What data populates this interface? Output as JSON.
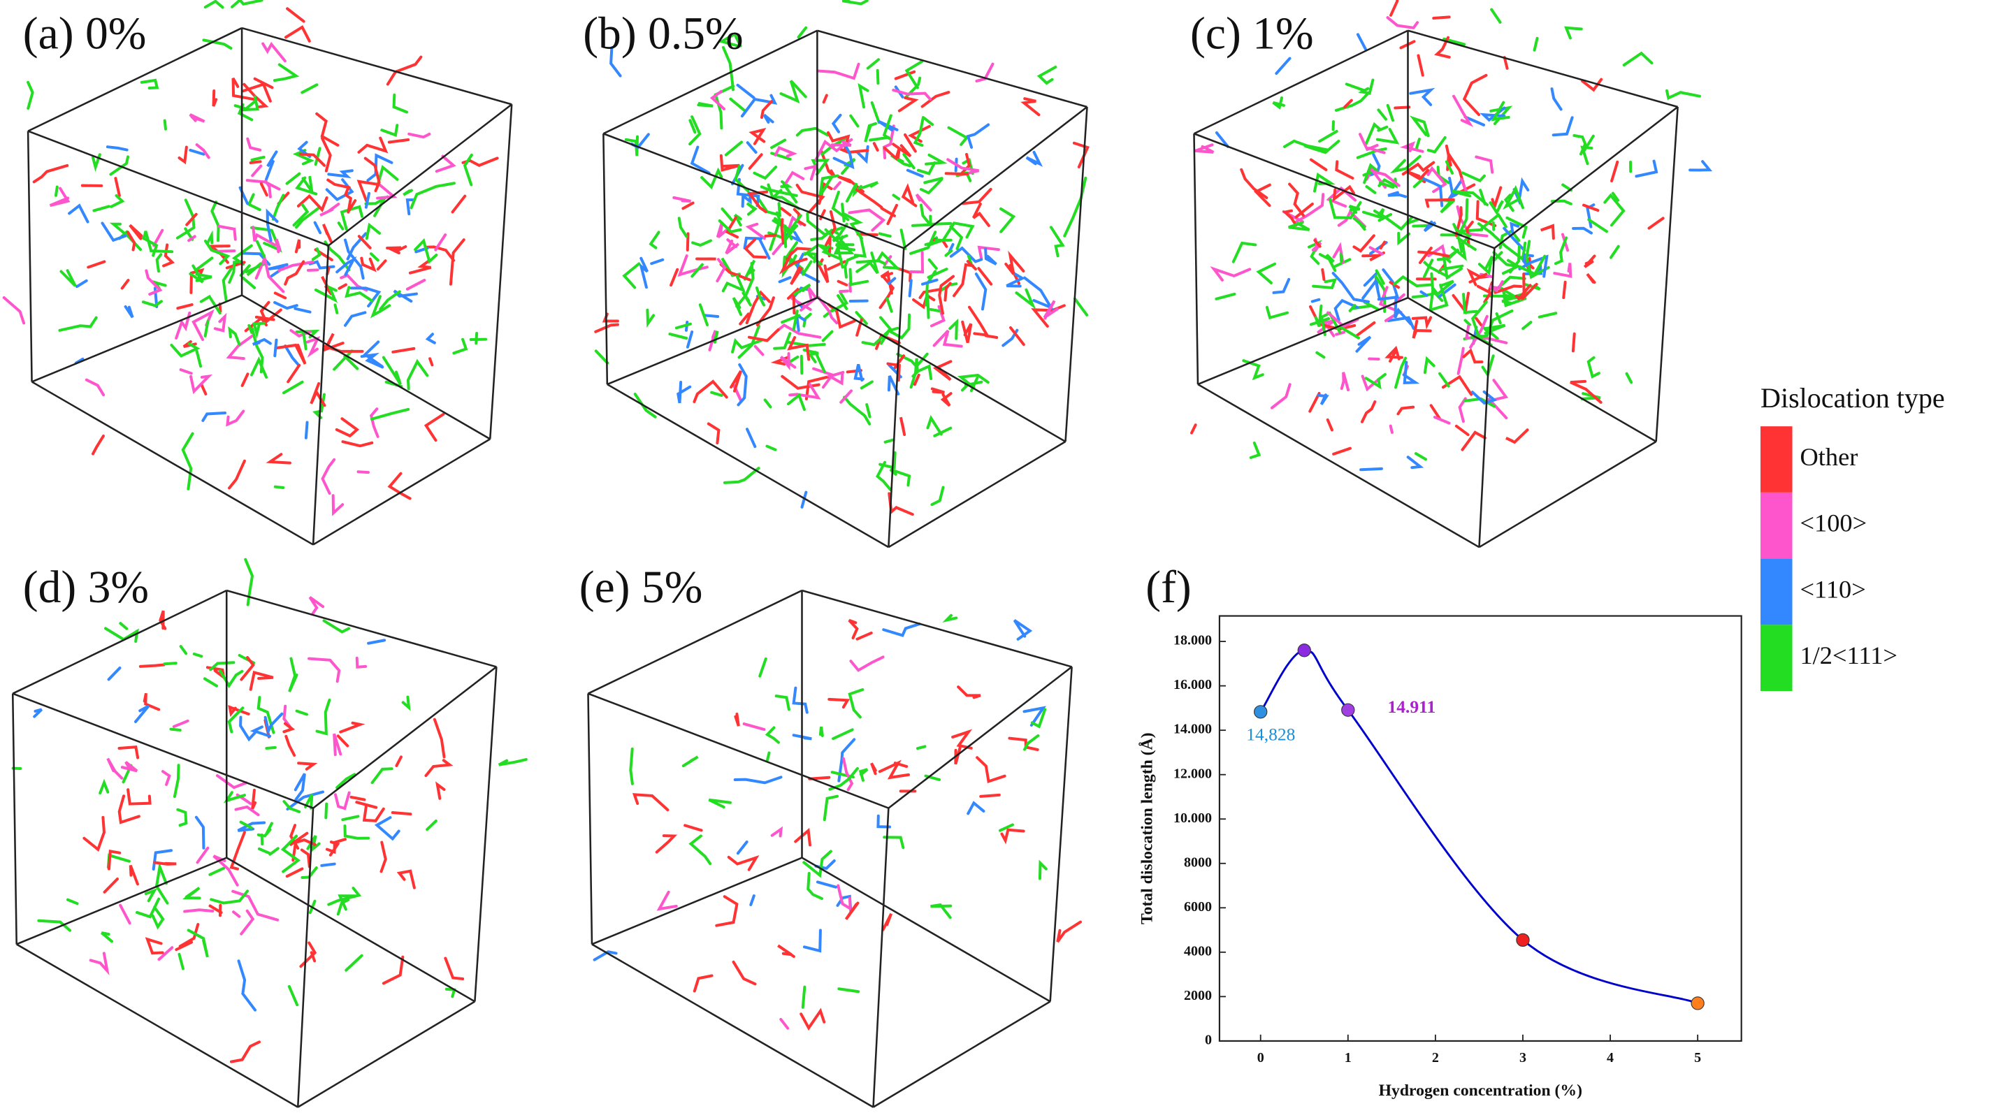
{
  "panels": [
    {
      "label": "(a) 0%"
    },
    {
      "label": "(b) 0.5%"
    },
    {
      "label": "(c) 1%"
    },
    {
      "label": "(d) 3%"
    },
    {
      "label": "(e) 5%"
    }
  ],
  "legend": {
    "title": "Dislocation type",
    "items": [
      {
        "name": "Other",
        "color": "#ff3333"
      },
      {
        "name": "<100>",
        "color": "#ff55cc"
      },
      {
        "name": "<110>",
        "color": "#3388ff"
      },
      {
        "name": "1/2<111>",
        "color": "#22dd22"
      }
    ]
  },
  "chart_data": {
    "type": "line",
    "panel_label": "(f)",
    "xlabel": "Hydrogen concentration (%)",
    "ylabel": "Total dislocation length (Å)",
    "x": [
      0,
      0.5,
      1,
      3,
      5
    ],
    "series": [
      {
        "color": "#0000cc",
        "point_colors": [
          "#2f8fe0",
          "#8a2be2",
          "#a040e0",
          "#ee2020",
          "#ff7f1e"
        ],
        "values": [
          14828,
          17600,
          14911,
          4550,
          1700
        ],
        "value_labels": [
          "14,828",
          null,
          "14.911",
          null,
          null
        ],
        "value_label_colors": [
          "#1a8fd6",
          null,
          "#aa22cc",
          null,
          null
        ]
      }
    ],
    "xlim": [
      -0.47,
      5.5
    ],
    "ylim": [
      0,
      19150
    ],
    "xticks": [
      0,
      1,
      2,
      3,
      4,
      5
    ],
    "yticks": [
      0,
      2000,
      4000,
      6000,
      8000,
      {
        "value": 10000,
        "label": "10.000"
      },
      {
        "value": 12000,
        "label": "12.000"
      },
      {
        "value": 14000,
        "label": "14.000"
      },
      {
        "value": 16000,
        "label": "16.000"
      },
      {
        "value": 18000,
        "label": "18.000"
      }
    ]
  }
}
